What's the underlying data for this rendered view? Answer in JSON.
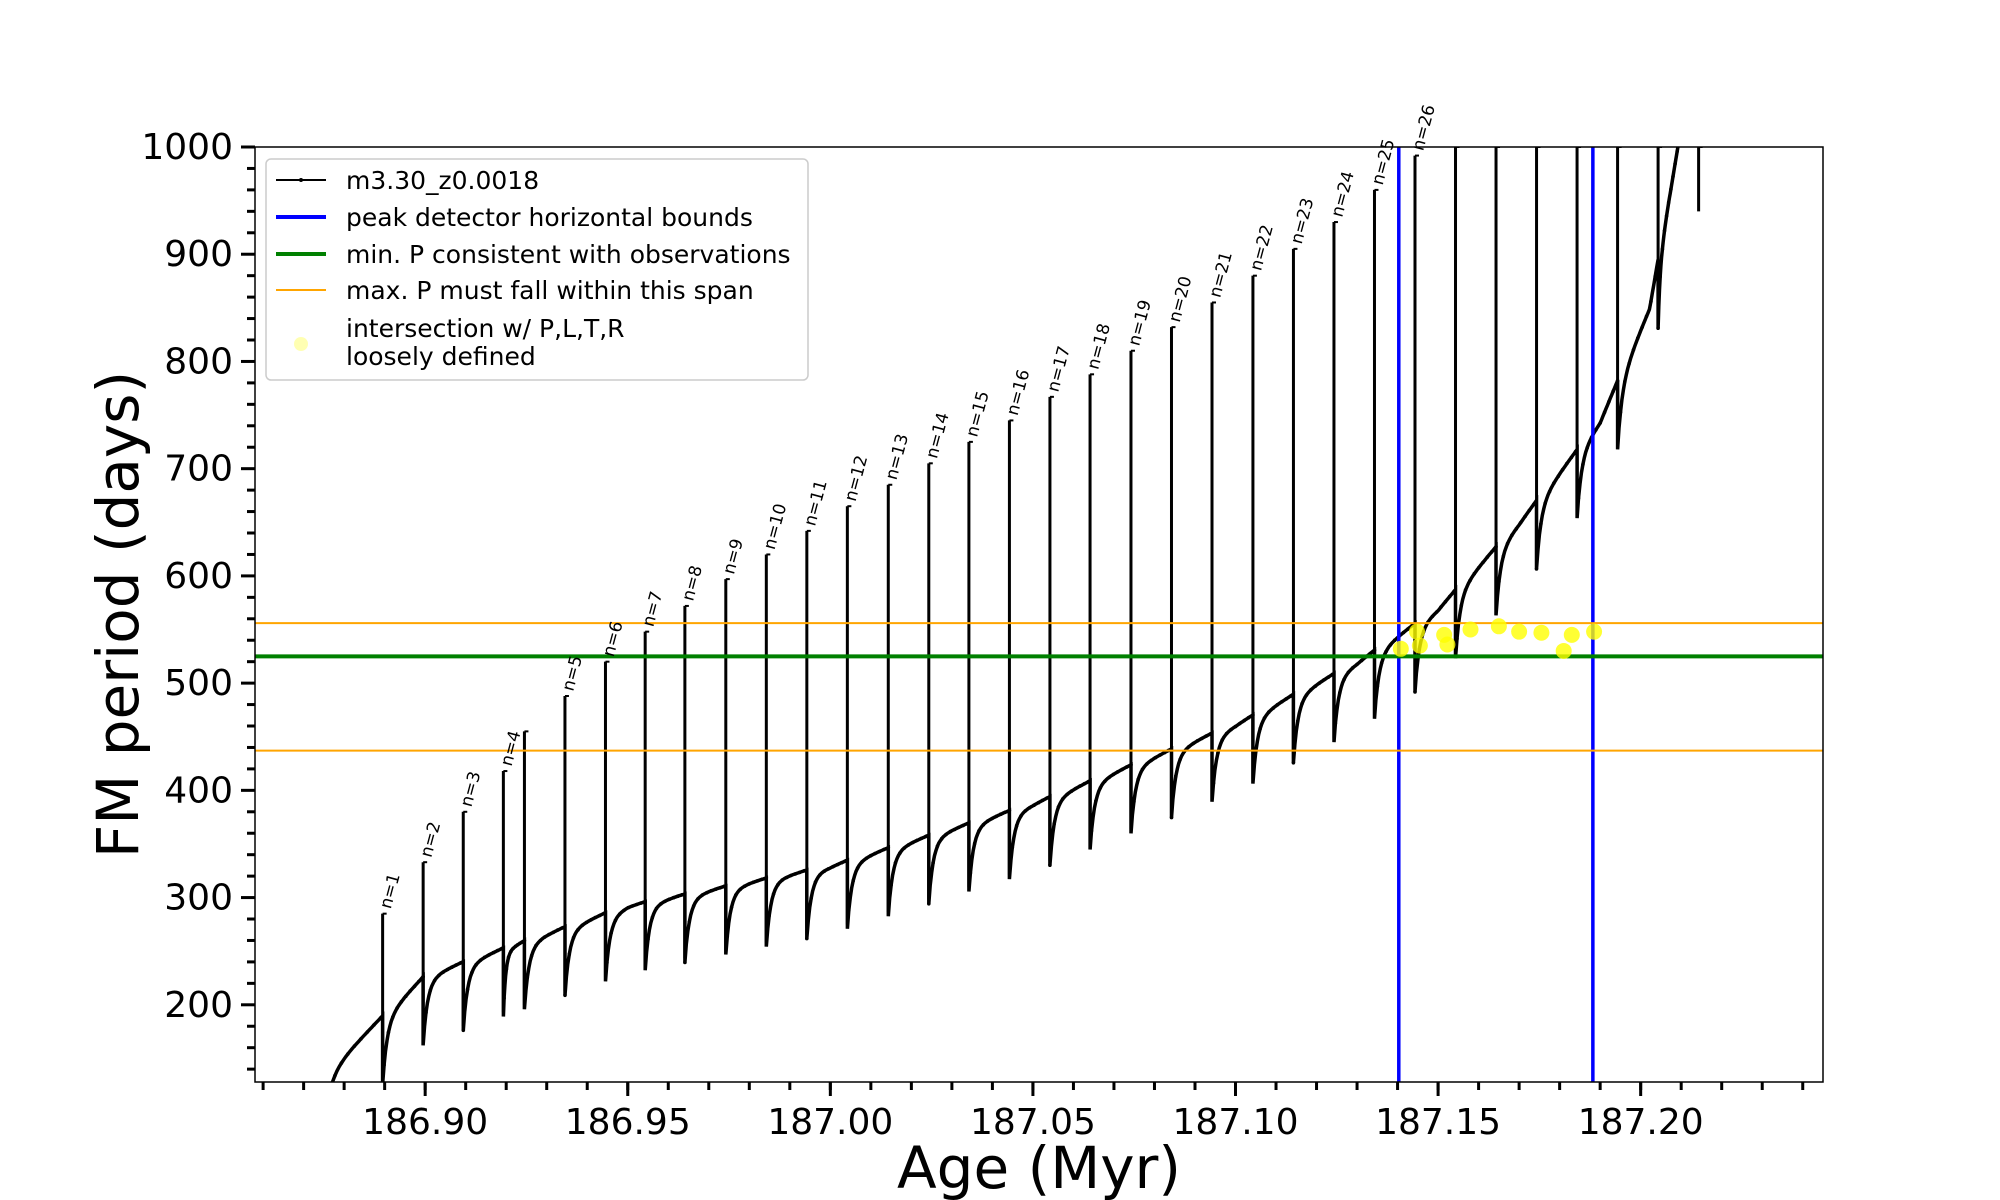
{
  "chart_data": {
    "type": "line",
    "xlabel": "Age (Myr)",
    "ylabel": "FM period (days)",
    "xlim": [
      186.858,
      187.245
    ],
    "ylim": [
      128,
      1000
    ],
    "x_ticks": [
      "186.90",
      "186.95",
      "187.00",
      "187.05",
      "187.10",
      "187.15",
      "187.20"
    ],
    "x_tick_values": [
      186.9,
      186.95,
      187.0,
      187.05,
      187.1,
      187.15,
      187.2
    ],
    "y_ticks": [
      "200",
      "300",
      "400",
      "500",
      "600",
      "700",
      "800",
      "900",
      "1000"
    ],
    "y_tick_values": [
      200,
      300,
      400,
      500,
      600,
      700,
      800,
      900,
      1000
    ],
    "series": [
      {
        "name": "m3.30_z0.0018",
        "color": "#000000",
        "style": "line with small point markers",
        "peaks": [
          {
            "label": "n=1",
            "x": 186.8895,
            "y": 285
          },
          {
            "label": "n=2",
            "x": 186.8995,
            "y": 333
          },
          {
            "label": "n=3",
            "x": 186.9094,
            "y": 380
          },
          {
            "label": "n=4",
            "x": 186.9193,
            "y": 418
          },
          {
            "label": "",
            "x": 186.9245,
            "y": 455
          },
          {
            "label": "n=5",
            "x": 186.9345,
            "y": 488
          },
          {
            "label": "n=6",
            "x": 186.9445,
            "y": 520
          },
          {
            "label": "n=7",
            "x": 186.9543,
            "y": 548
          },
          {
            "label": "n=8",
            "x": 186.9641,
            "y": 572
          },
          {
            "label": "n=9",
            "x": 186.9742,
            "y": 597
          },
          {
            "label": "n=10",
            "x": 186.9842,
            "y": 620
          },
          {
            "label": "n=11",
            "x": 186.9942,
            "y": 642
          },
          {
            "label": "n=12",
            "x": 187.0042,
            "y": 665
          },
          {
            "label": "n=13",
            "x": 187.0143,
            "y": 685
          },
          {
            "label": "n=14",
            "x": 187.0243,
            "y": 705
          },
          {
            "label": "n=15",
            "x": 187.0342,
            "y": 725
          },
          {
            "label": "n=16",
            "x": 187.0442,
            "y": 745
          },
          {
            "label": "n=17",
            "x": 187.0542,
            "y": 767
          },
          {
            "label": "n=18",
            "x": 187.0641,
            "y": 788
          },
          {
            "label": "n=19",
            "x": 187.0742,
            "y": 810
          },
          {
            "label": "n=20",
            "x": 187.0842,
            "y": 832
          },
          {
            "label": "n=21",
            "x": 187.0942,
            "y": 855
          },
          {
            "label": "n=22",
            "x": 187.1043,
            "y": 880
          },
          {
            "label": "n=23",
            "x": 187.1143,
            "y": 905
          },
          {
            "label": "n=24",
            "x": 187.1243,
            "y": 930
          },
          {
            "label": "n=25",
            "x": 187.1343,
            "y": 960
          },
          {
            "label": "n=26",
            "x": 187.1443,
            "y": 992
          }
        ],
        "envelope": [
          {
            "x": 186.8745,
            "y": 135
          },
          {
            "x": 186.9,
            "y": 228
          },
          {
            "x": 186.95,
            "y": 293
          },
          {
            "x": 187.0,
            "y": 330
          },
          {
            "x": 187.05,
            "y": 388
          },
          {
            "x": 187.1,
            "y": 462
          },
          {
            "x": 187.13,
            "y": 520
          },
          {
            "x": 187.15,
            "y": 570
          },
          {
            "x": 187.17,
            "y": 650
          },
          {
            "x": 187.19,
            "y": 745
          },
          {
            "x": 187.2022,
            "y": 850
          },
          {
            "x": 187.2092,
            "y": 1000
          }
        ],
        "late_spikes": [
          {
            "x": 187.1543,
            "y": 1000
          },
          {
            "x": 187.1643,
            "y": 1000
          },
          {
            "x": 187.1743,
            "y": 1000
          },
          {
            "x": 187.1843,
            "y": 1000
          },
          {
            "x": 187.1943,
            "y": 1000
          },
          {
            "x": 187.2043,
            "y": 1000
          },
          {
            "x": 187.2143,
            "y": 1000
          }
        ]
      }
    ],
    "reference_lines": [
      {
        "name": "peak detector horizontal bounds",
        "orientation": "vertical",
        "values": [
          187.1403,
          187.1882
        ],
        "color": "#0000ff"
      },
      {
        "name": "min. P consistent with observations",
        "orientation": "horizontal",
        "values": [
          525
        ],
        "color": "#008000"
      },
      {
        "name": "max. P must fall within this span",
        "orientation": "horizontal",
        "values": [
          437,
          556
        ],
        "color": "#ffa500"
      }
    ],
    "intersections": {
      "name": "intersection w/ P,L,T,R\nloosely defined",
      "color": "#ffff00",
      "points": [
        {
          "x": 187.1408,
          "y": 532
        },
        {
          "x": 187.1448,
          "y": 548
        },
        {
          "x": 187.1455,
          "y": 535
        },
        {
          "x": 187.1515,
          "y": 545
        },
        {
          "x": 187.1523,
          "y": 536
        },
        {
          "x": 187.158,
          "y": 550
        },
        {
          "x": 187.165,
          "y": 553
        },
        {
          "x": 187.17,
          "y": 548
        },
        {
          "x": 187.1755,
          "y": 547
        },
        {
          "x": 187.181,
          "y": 530
        },
        {
          "x": 187.183,
          "y": 545
        },
        {
          "x": 187.1885,
          "y": 548
        }
      ]
    },
    "legend": {
      "position": "top-left",
      "entries": [
        {
          "label": "m3.30_z0.0018",
          "color": "#000000",
          "kind": "line-marker"
        },
        {
          "label": "peak detector horizontal bounds",
          "color": "#0000ff",
          "kind": "line"
        },
        {
          "label": "min. P consistent with observations",
          "color": "#008000",
          "kind": "line"
        },
        {
          "label": "max. P must fall within this span",
          "color": "#ffa500",
          "kind": "thin-line"
        },
        {
          "label": "intersection w/ P,L,T,R",
          "label2": "loosely defined",
          "color": "#ffff00",
          "kind": "marker"
        }
      ]
    },
    "grid": false
  }
}
